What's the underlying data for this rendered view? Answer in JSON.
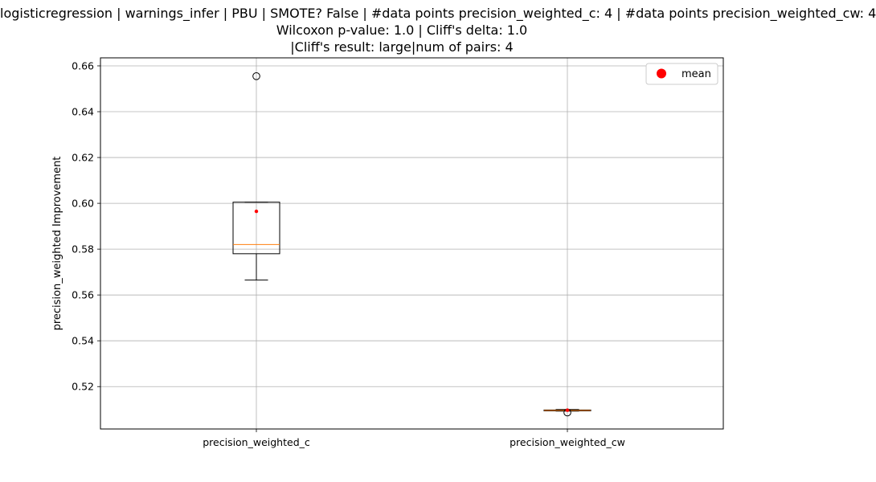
{
  "chart_data": {
    "type": "box",
    "title_lines": [
      "logisticregression | warnings_infer | PBU | SMOTE? False | #data points precision_weighted_c: 4 | #data points precision_weighted_cw: 4",
      "Wilcoxon p-value: 1.0 | Cliff's delta: 1.0",
      "|Cliff's result: large|num of pairs: 4"
    ],
    "xlabel": "",
    "ylabel": "precision_weighted Improvement",
    "ylim": [
      0.5015,
      0.6635
    ],
    "yticks": [
      0.52,
      0.54,
      0.56,
      0.58,
      0.6,
      0.62,
      0.64,
      0.66
    ],
    "ytick_labels": [
      "0.52",
      "0.54",
      "0.56",
      "0.58",
      "0.60",
      "0.62",
      "0.64",
      "0.66"
    ],
    "grid": true,
    "legend": {
      "placement": "top-right",
      "entries": [
        {
          "label": "mean",
          "color": "#ff0000"
        }
      ]
    },
    "categories": [
      "precision_weighted_c",
      "precision_weighted_cw"
    ],
    "boxes": [
      {
        "name": "precision_weighted_c",
        "whisker_low": 0.5665,
        "q1": 0.578,
        "median": 0.582,
        "q3": 0.6005,
        "whisker_high": 0.6005,
        "mean": 0.5965,
        "outliers": [
          0.6555
        ]
      },
      {
        "name": "precision_weighted_cw",
        "whisker_low": 0.5093,
        "q1": 0.5094,
        "median": 0.5096,
        "q3": 0.5098,
        "whisker_high": 0.51,
        "mean": 0.5097,
        "outliers": [
          0.5087
        ]
      }
    ],
    "colors": {
      "box": "#000000",
      "median": "#ff7f0e",
      "mean": "#ff0000",
      "grid": "#b0b0b0"
    }
  }
}
